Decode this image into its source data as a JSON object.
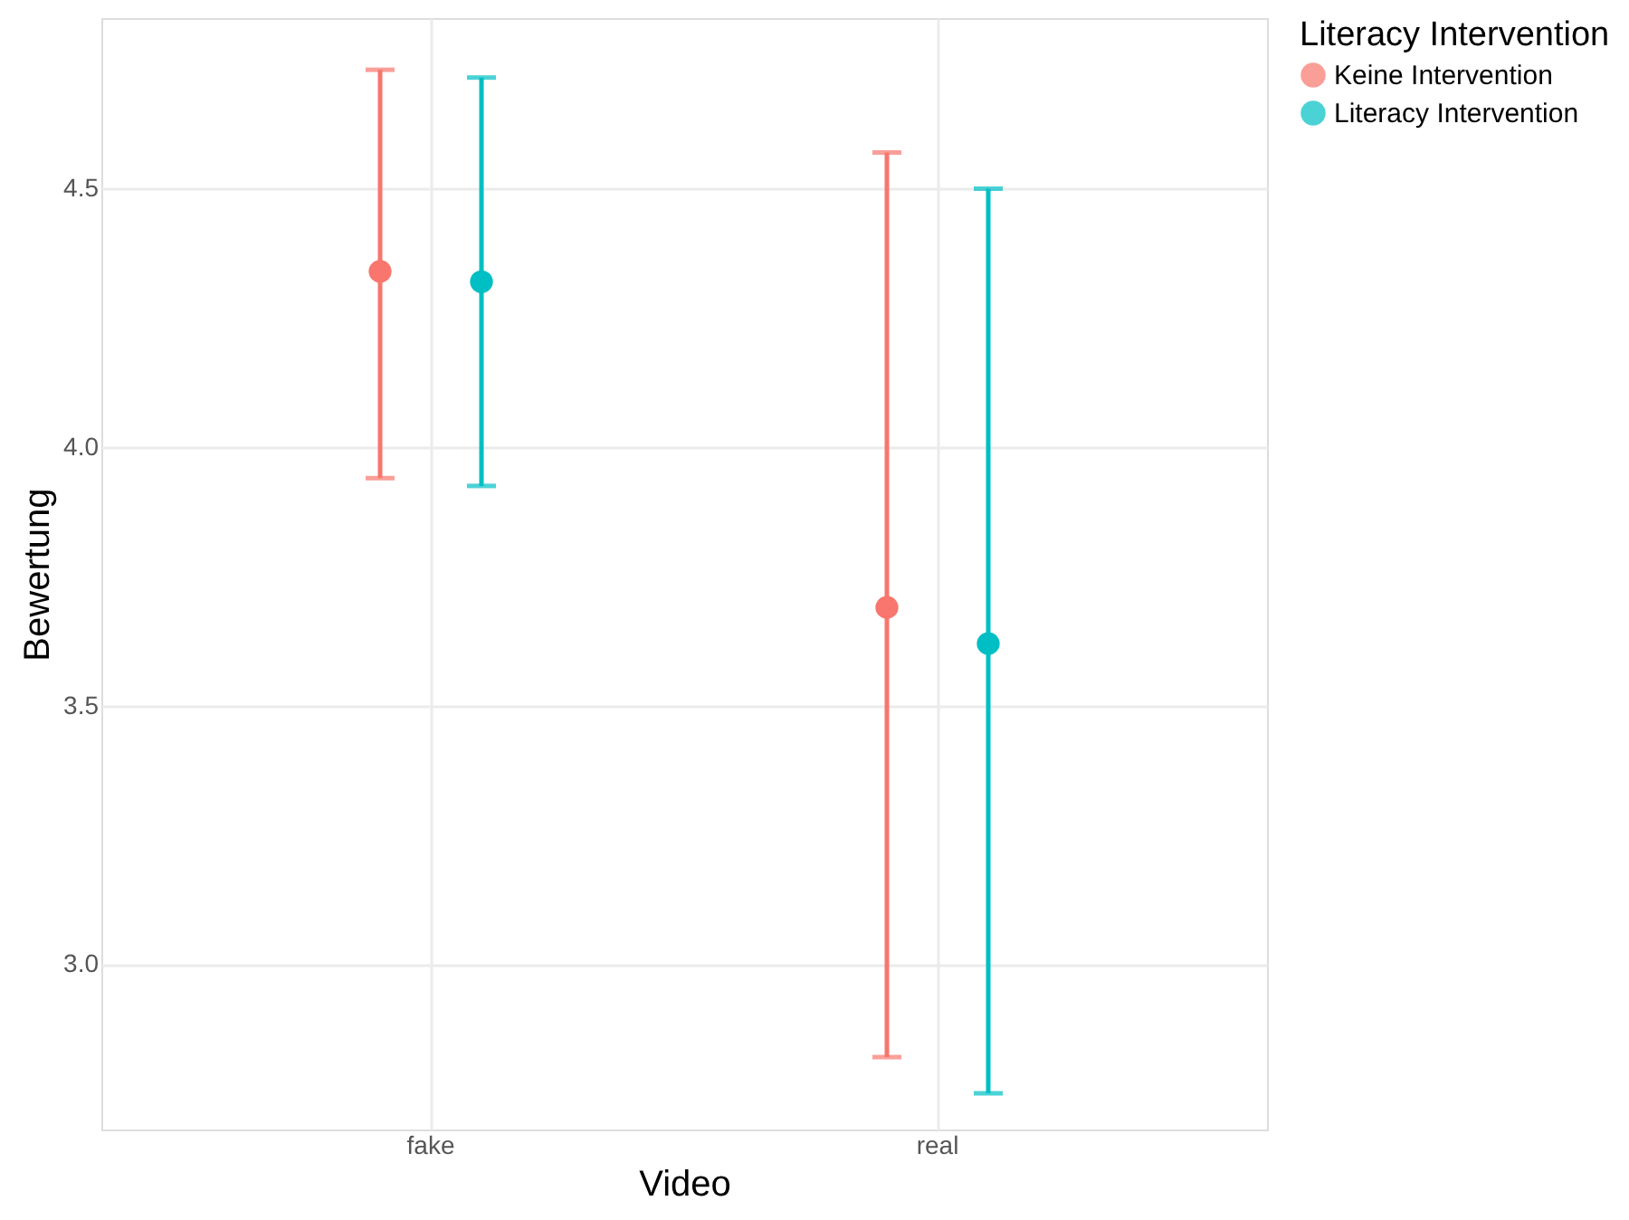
{
  "chart_data": {
    "type": "scatter",
    "xlabel": "Video",
    "ylabel": "Bewertung",
    "legend_title": "Literacy Intervention",
    "categories": [
      "fake",
      "real"
    ],
    "series": [
      {
        "name": "Keine Intervention",
        "color": "#f8766d",
        "values": [
          4.34,
          3.69
        ],
        "errors": [
          [
            3.94,
            4.73
          ],
          [
            2.82,
            4.57
          ]
        ]
      },
      {
        "name": "Literacy Intervention",
        "color": "#00bfc4",
        "values": [
          4.32,
          3.62
        ],
        "errors": [
          [
            3.925,
            4.715
          ],
          [
            2.75,
            4.5
          ]
        ]
      }
    ],
    "ylim": [
      2.68,
      4.83
    ],
    "yticks": [
      {
        "value": 3,
        "label": "3.0"
      },
      3.5,
      {
        "value": 4,
        "label": "4.0"
      },
      4.5
    ],
    "grid": true,
    "legend": "right",
    "marker": "circle"
  }
}
